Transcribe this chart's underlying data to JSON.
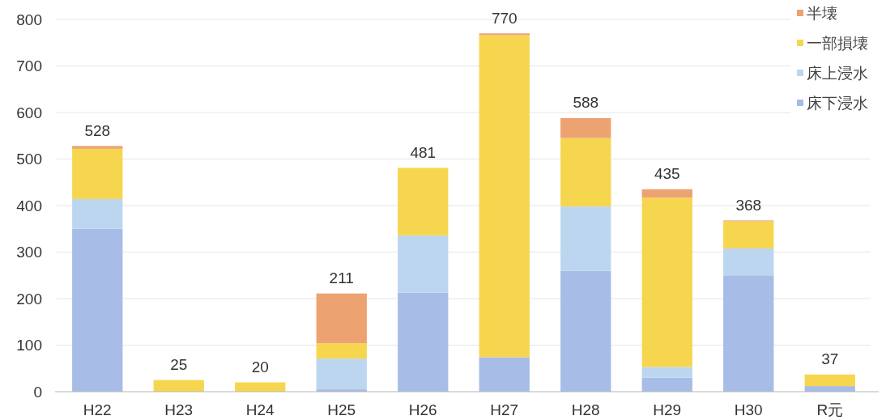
{
  "chart_data": {
    "type": "bar",
    "stacked": true,
    "categories": [
      "H22",
      "H23",
      "H24",
      "H25",
      "H26",
      "H27",
      "H28",
      "H29",
      "H30",
      "R元"
    ],
    "series": [
      {
        "name": "床下浸水",
        "color": "#a7bce6",
        "values": [
          350,
          null,
          null,
          5,
          213,
          74,
          260,
          30,
          250,
          12
        ]
      },
      {
        "name": "床上浸水",
        "color": "#bcd6f0",
        "values": [
          64,
          null,
          null,
          66,
          123,
          null,
          138,
          23,
          58,
          null
        ]
      },
      {
        "name": "一部損壊",
        "color": "#f7d64f",
        "values": [
          108,
          25,
          20,
          33,
          145,
          692,
          147,
          364,
          58,
          25
        ]
      },
      {
        "name": "半壊",
        "color": "#eda272",
        "values": [
          6,
          null,
          null,
          107,
          null,
          4,
          43,
          18,
          2,
          null
        ]
      }
    ],
    "ylim": [
      0,
      800
    ],
    "yticks": [
      0,
      100,
      200,
      300,
      400,
      500,
      600,
      700,
      800
    ],
    "grid": "y",
    "legend": "top right",
    "totals": [
      "528",
      "25",
      "20",
      "211",
      "481",
      "770",
      "588",
      "435",
      "368",
      "37"
    ]
  }
}
